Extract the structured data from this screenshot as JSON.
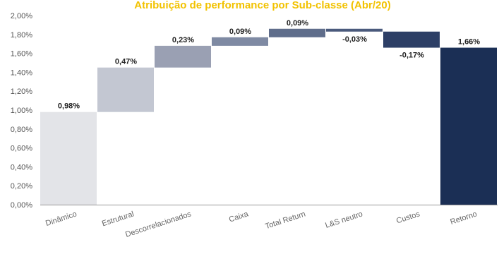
{
  "chart_data": {
    "type": "bar",
    "subtype": "waterfall",
    "title": "Atribuição de performance por Sub-classe (Abr/20)",
    "xlabel": "",
    "ylabel": "",
    "ylim": [
      0,
      2.0
    ],
    "y_ticks": [
      "0,00%",
      "0,20%",
      "0,40%",
      "0,60%",
      "0,80%",
      "1,00%",
      "1,20%",
      "1,40%",
      "1,60%",
      "1,80%",
      "2,00%"
    ],
    "y_tick_values": [
      0,
      0.2,
      0.4,
      0.6,
      0.8,
      1.0,
      1.2,
      1.4,
      1.6,
      1.8,
      2.0
    ],
    "grid": false,
    "legend": "none",
    "categories": [
      "Dinâmico",
      "Estrutural",
      "Descorrelacionados",
      "Caixa",
      "Total Return",
      "L&S neutro",
      "Custos",
      "Retorno"
    ],
    "values": [
      0.98,
      0.47,
      0.23,
      0.09,
      0.09,
      -0.03,
      -0.17,
      1.66
    ],
    "bar_start": [
      0,
      0.98,
      1.45,
      1.68,
      1.77,
      1.86,
      1.83,
      0
    ],
    "bar_end": [
      0.98,
      1.45,
      1.68,
      1.77,
      1.86,
      1.83,
      1.66,
      1.66
    ],
    "data_labels": [
      "0,98%",
      "0,47%",
      "0,23%",
      "0,09%",
      "0,09%",
      "-0,03%",
      "-0,17%",
      "1,66%"
    ],
    "colors": [
      "#e3e4e8",
      "#c3c7d2",
      "#9aa0b3",
      "#7f8aa3",
      "#5f6d8b",
      "#4a5a7c",
      "#2d3f66",
      "#1b2f55"
    ],
    "title_color": "#f2c200"
  }
}
